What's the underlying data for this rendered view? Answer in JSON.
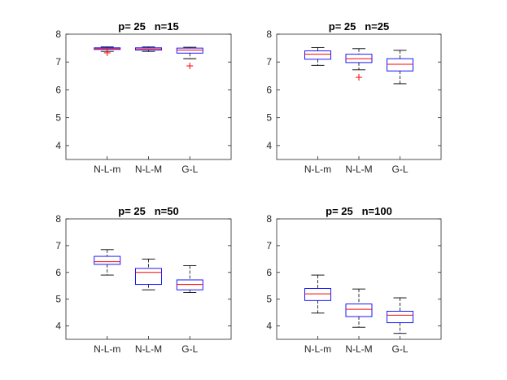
{
  "chart_data": [
    {
      "type": "boxplot",
      "title": "p= 25   n=15",
      "categories": [
        "N-L-m",
        "N-L-M",
        "G-L"
      ],
      "ylim": [
        3.5,
        8
      ],
      "yticks": [
        4,
        5,
        6,
        7,
        8
      ],
      "boxes": [
        {
          "min": 7.38,
          "q1": 7.45,
          "median": 7.48,
          "q3": 7.51,
          "max": 7.54,
          "outliers": [
            7.33
          ]
        },
        {
          "min": 7.38,
          "q1": 7.43,
          "median": 7.47,
          "q3": 7.51,
          "max": 7.54,
          "outliers": []
        },
        {
          "min": 7.12,
          "q1": 7.32,
          "median": 7.43,
          "q3": 7.5,
          "max": 7.53,
          "outliers": [
            6.86
          ]
        }
      ]
    },
    {
      "type": "boxplot",
      "title": "p= 25   n=25",
      "categories": [
        "N-L-m",
        "N-L-M",
        "G-L"
      ],
      "ylim": [
        3.5,
        8
      ],
      "yticks": [
        4,
        5,
        6,
        7,
        8
      ],
      "boxes": [
        {
          "min": 6.88,
          "q1": 7.1,
          "median": 7.28,
          "q3": 7.4,
          "max": 7.52,
          "outliers": []
        },
        {
          "min": 6.72,
          "q1": 6.98,
          "median": 7.12,
          "q3": 7.28,
          "max": 7.48,
          "outliers": [
            6.45
          ]
        },
        {
          "min": 6.22,
          "q1": 6.68,
          "median": 6.92,
          "q3": 7.12,
          "max": 7.42,
          "outliers": []
        }
      ]
    },
    {
      "type": "boxplot",
      "title": "p= 25   n=50",
      "categories": [
        "N-L-m",
        "N-L-M",
        "G-L"
      ],
      "ylim": [
        3.5,
        8
      ],
      "yticks": [
        4,
        5,
        6,
        7,
        8
      ],
      "boxes": [
        {
          "min": 5.9,
          "q1": 6.3,
          "median": 6.4,
          "q3": 6.6,
          "max": 6.85,
          "outliers": []
        },
        {
          "min": 5.35,
          "q1": 5.55,
          "median": 6.0,
          "q3": 6.15,
          "max": 6.5,
          "outliers": []
        },
        {
          "min": 5.25,
          "q1": 5.35,
          "median": 5.55,
          "q3": 5.72,
          "max": 6.25,
          "outliers": []
        }
      ]
    },
    {
      "type": "boxplot",
      "title": "p= 25   n=100",
      "categories": [
        "N-L-m",
        "N-L-M",
        "G-L"
      ],
      "ylim": [
        3.5,
        8
      ],
      "yticks": [
        4,
        5,
        6,
        7,
        8
      ],
      "boxes": [
        {
          "min": 4.48,
          "q1": 4.95,
          "median": 5.2,
          "q3": 5.4,
          "max": 5.9,
          "outliers": []
        },
        {
          "min": 3.95,
          "q1": 4.35,
          "median": 4.62,
          "q3": 4.82,
          "max": 5.38,
          "outliers": []
        },
        {
          "min": 3.72,
          "q1": 4.12,
          "median": 4.4,
          "q3": 4.55,
          "max": 5.05,
          "outliers": []
        }
      ]
    }
  ],
  "colors": {
    "box": "#0000ff",
    "median": "#ff0000",
    "whisker": "#000000",
    "outlier": "#ff0000",
    "axis": "#262626"
  }
}
